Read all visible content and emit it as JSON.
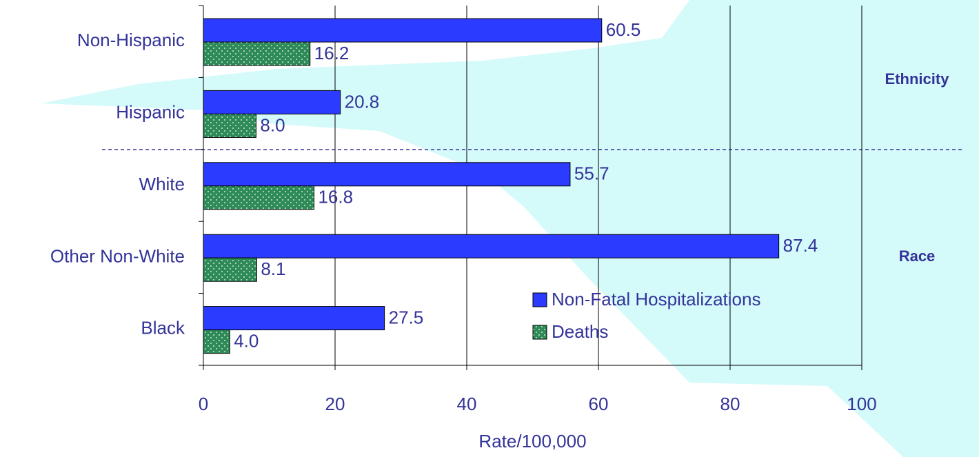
{
  "chart_data": {
    "type": "hbar",
    "categories": [
      "Non-Hispanic",
      "Hispanic",
      "White",
      "Other Non-White",
      "Black"
    ],
    "series": [
      {
        "name": "Non-Fatal Hospitalizations",
        "color": "#2b3bff",
        "values": [
          60.5,
          20.8,
          55.7,
          87.4,
          27.5
        ],
        "value_labels": [
          "60.5",
          "20.8",
          "55.7",
          "87.4",
          "27.5"
        ]
      },
      {
        "name": "Deaths",
        "color": "#2e8b57",
        "values": [
          16.2,
          8.0,
          16.8,
          8.1,
          4.0
        ],
        "value_labels": [
          "16.2",
          "8.0",
          "16.8",
          "8.1",
          "4.0"
        ]
      }
    ],
    "xlim": [
      0,
      100
    ],
    "xticks": [
      0,
      20,
      40,
      60,
      80,
      100
    ],
    "xlabel": "Rate/100,000",
    "grid": true,
    "legend": "lower right",
    "annotations": [
      "Ethnicity",
      "Race"
    ]
  }
}
